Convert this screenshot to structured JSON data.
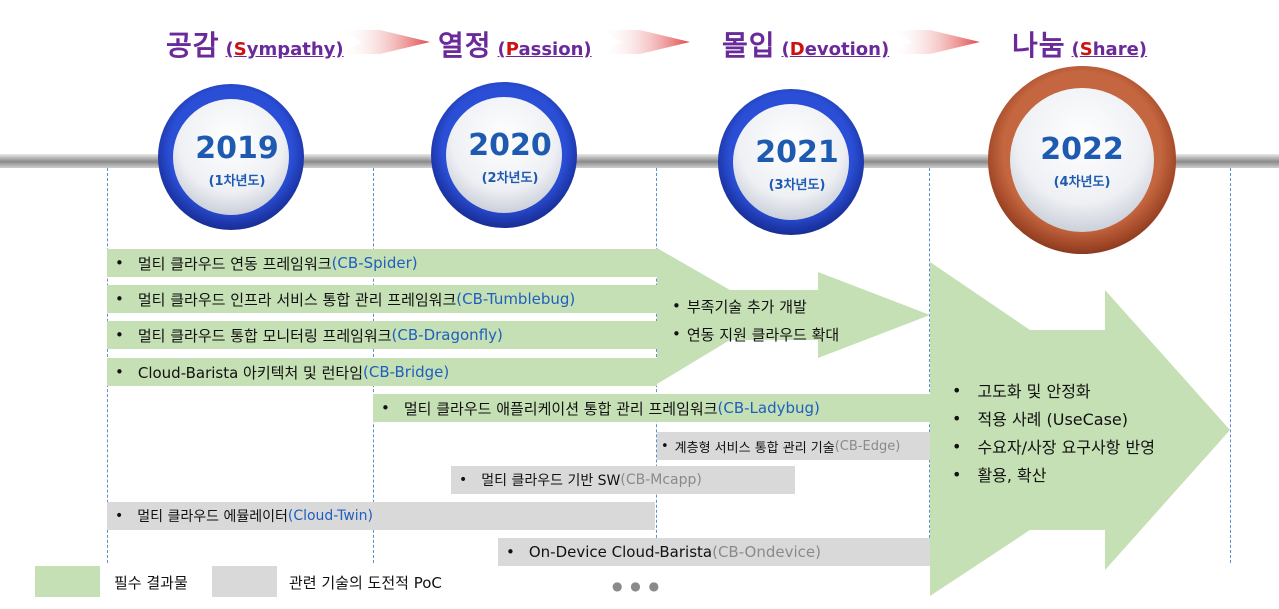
{
  "phases": [
    {
      "ko": "공감",
      "en_open": "(",
      "en_hl": "S",
      "en_rest": "ympathy)"
    },
    {
      "ko": "열정",
      "en_open": "(",
      "en_hl": "P",
      "en_rest": "assion)"
    },
    {
      "ko": "몰입",
      "en_open": "(",
      "en_hl": "D",
      "en_rest": "evotion)"
    },
    {
      "ko": "나눔",
      "en_open": "(",
      "en_hl": "S",
      "en_rest": "hare)"
    }
  ],
  "years": [
    {
      "year": "2019",
      "sub": "(1차년도)"
    },
    {
      "year": "2020",
      "sub": "(2차년도)"
    },
    {
      "year": "2021",
      "sub": "(3차년도)"
    },
    {
      "year": "2022",
      "sub": "(4차년도)"
    }
  ],
  "bars": [
    {
      "bullet": "•",
      "text": "멀티 클라우드 연동 프레임워크 ",
      "tag": "(CB-Spider)"
    },
    {
      "bullet": "•",
      "text": "멀티 클라우드 인프라 서비스 통합 관리 프레임워크 ",
      "tag": "(CB-Tumblebug)"
    },
    {
      "bullet": "•",
      "text": "멀티 클라우드 통합 모니터링 프레임워크 ",
      "tag": "(CB-Dragonfly)"
    },
    {
      "bullet": "•",
      "text": "Cloud-Barista 아키텍처 및 런타임 ",
      "tag": "(CB-Bridge)"
    },
    {
      "bullet": "•",
      "text": "멀티 클라우드 애플리케이션 통합 관리 프레임워크 ",
      "tag": "(CB-Ladybug)"
    },
    {
      "bullet": "•",
      "text": "계층형 서비스 통합 관리 기술 ",
      "tag": "(CB-Edge)"
    },
    {
      "bullet": "•",
      "text": "멀티 클라우드 기반 SW ",
      "tag": "(CB-Mcapp)"
    },
    {
      "bullet": "•",
      "text": "멀티 클라우드 에뮬레이터 ",
      "tag": "(Cloud-Twin)"
    },
    {
      "bullet": "•",
      "text": "On-Device Cloud-Barista ",
      "tag": "(CB-Ondevice)"
    }
  ],
  "arrow1_items": [
    "부족기술 추가 개발",
    "연동 지원 클라우드 확대"
  ],
  "arrow2_items": [
    "고도화 및 안정화",
    "적용 사례 (UseCase)",
    "수요자/사장 요구사항 반영",
    "활용, 확산"
  ],
  "bullet": "•",
  "legend": {
    "green_label": "필수 결과물",
    "gray_label": "관련 기술의 도전적 PoC",
    "more": "● ● ●"
  },
  "colors": {
    "green": "#c5e0b4",
    "gray": "#d9d9d9",
    "purple": "#6a2a9a",
    "red": "#cc1111",
    "blue": "#1e5bb0"
  }
}
